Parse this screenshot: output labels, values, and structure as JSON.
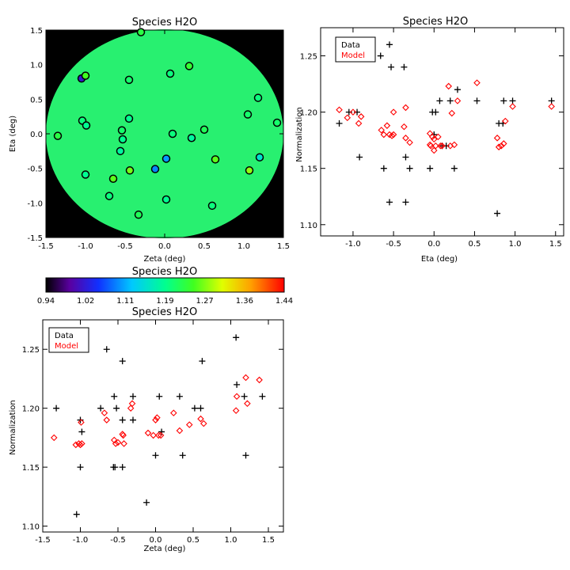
{
  "map_panel": {
    "title": "Species H2O",
    "xlabel": "Zeta (deg)",
    "ylabel": "Eta (deg)",
    "xticks": [
      "-1.5",
      "-1.0",
      "-0.5",
      "0.0",
      "0.5",
      "1.0",
      "1.5"
    ],
    "yticks": [
      "-1.5",
      "-1.0",
      "-0.5",
      "0.0",
      "0.5",
      "1.0",
      "1.5"
    ],
    "field_color": "#28f070",
    "background_color": "#000000"
  },
  "colorbar": {
    "title": "Species H2O",
    "ticks": [
      "0.94",
      "1.02",
      "1.11",
      "1.19",
      "1.27",
      "1.36",
      "1.44"
    ],
    "range": [
      0.94,
      1.44
    ]
  },
  "colors": {
    "data": "#000000",
    "model": "#ff0000"
  },
  "chart_data": [
    {
      "type": "scatter",
      "title": "Species H2O",
      "xlabel": "Zeta (deg)",
      "ylabel": "Eta (deg)",
      "xlim": [
        -1.5,
        1.5
      ],
      "ylim": [
        -1.5,
        1.5
      ],
      "color_range": [
        0.94,
        1.44
      ],
      "field_value": 1.22,
      "points": [
        {
          "x": -0.3,
          "y": 1.47,
          "v": 1.23
        },
        {
          "x": -1.05,
          "y": 0.8,
          "v": 1.02
        },
        {
          "x": -1.0,
          "y": 0.84,
          "v": 1.25
        },
        {
          "x": -0.45,
          "y": 0.78,
          "v": 1.21
        },
        {
          "x": 0.07,
          "y": 0.87,
          "v": 1.2
        },
        {
          "x": 0.31,
          "y": 0.98,
          "v": 1.24
        },
        {
          "x": -1.04,
          "y": 0.19,
          "v": 1.2
        },
        {
          "x": -0.99,
          "y": 0.12,
          "v": 1.19
        },
        {
          "x": -0.45,
          "y": 0.22,
          "v": 1.19
        },
        {
          "x": -0.54,
          "y": 0.05,
          "v": 1.21
        },
        {
          "x": -0.53,
          "y": -0.08,
          "v": 1.19
        },
        {
          "x": -0.56,
          "y": -0.25,
          "v": 1.18
        },
        {
          "x": -1.35,
          "y": -0.03,
          "v": 1.23
        },
        {
          "x": 0.1,
          "y": 0.0,
          "v": 1.2
        },
        {
          "x": 0.34,
          "y": -0.06,
          "v": 1.18
        },
        {
          "x": 0.5,
          "y": 0.06,
          "v": 1.22
        },
        {
          "x": 1.05,
          "y": 0.28,
          "v": 1.21
        },
        {
          "x": 1.18,
          "y": 0.52,
          "v": 1.2
        },
        {
          "x": 1.42,
          "y": 0.16,
          "v": 1.21
        },
        {
          "x": 0.02,
          "y": -0.36,
          "v": 1.1
        },
        {
          "x": -0.12,
          "y": -0.51,
          "v": 1.09
        },
        {
          "x": -0.44,
          "y": -0.53,
          "v": 1.27
        },
        {
          "x": -1.0,
          "y": -0.59,
          "v": 1.19
        },
        {
          "x": -0.65,
          "y": -0.65,
          "v": 1.26
        },
        {
          "x": -0.7,
          "y": -0.9,
          "v": 1.2
        },
        {
          "x": 0.02,
          "y": -0.95,
          "v": 1.19
        },
        {
          "x": 0.6,
          "y": -1.04,
          "v": 1.2
        },
        {
          "x": -0.33,
          "y": -1.17,
          "v": 1.22
        },
        {
          "x": 0.64,
          "y": -0.37,
          "v": 1.26
        },
        {
          "x": 1.07,
          "y": -0.53,
          "v": 1.28
        },
        {
          "x": 1.2,
          "y": -0.34,
          "v": 1.15
        }
      ]
    },
    {
      "type": "scatter",
      "title": "Species H2O",
      "xlabel": "Eta (deg)",
      "ylabel": "Normalization",
      "xlim": [
        -1.4,
        1.6
      ],
      "ylim": [
        1.09,
        1.275
      ],
      "xticks": [
        "-1.0",
        "-0.5",
        "0.0",
        "0.5",
        "1.0",
        "1.5"
      ],
      "yticks": [
        "1.10",
        "1.15",
        "1.20",
        "1.25"
      ],
      "legend": [
        "Data",
        "Model"
      ],
      "legend_position": "top-left",
      "series": [
        {
          "name": "Data",
          "marker": "plus",
          "x": [
            -1.17,
            -1.05,
            -0.95,
            -0.92,
            -0.66,
            -0.62,
            -0.55,
            -0.53,
            -0.55,
            -0.37,
            -0.35,
            -0.35,
            -0.3,
            -0.05,
            -0.02,
            0.0,
            0.02,
            0.07,
            0.1,
            0.15,
            0.2,
            0.25,
            0.29,
            0.53,
            0.78,
            0.8,
            0.85,
            0.86,
            0.97,
            1.45
          ],
          "y": [
            1.19,
            1.2,
            1.2,
            1.16,
            1.25,
            1.15,
            1.26,
            1.24,
            1.12,
            1.24,
            1.16,
            1.12,
            1.15,
            1.15,
            1.2,
            1.18,
            1.2,
            1.21,
            1.17,
            1.17,
            1.21,
            1.15,
            1.22,
            1.21,
            1.11,
            1.19,
            1.19,
            1.21,
            1.21,
            1.21
          ]
        },
        {
          "name": "Model",
          "marker": "diamond",
          "x": [
            -1.17,
            -1.07,
            -1.0,
            -0.93,
            -0.9,
            -0.65,
            -0.62,
            -0.58,
            -0.55,
            -0.52,
            -0.5,
            -0.5,
            -0.37,
            -0.35,
            -0.35,
            -0.3,
            -0.05,
            -0.05,
            -0.04,
            -0.02,
            0.0,
            0.0,
            0.02,
            0.05,
            0.08,
            0.1,
            0.18,
            0.2,
            0.22,
            0.25,
            0.29,
            0.53,
            0.78,
            0.8,
            0.83,
            0.86,
            0.88,
            0.97,
            1.45
          ],
          "y": [
            1.202,
            1.195,
            1.2,
            1.19,
            1.196,
            1.184,
            1.18,
            1.188,
            1.18,
            1.179,
            1.2,
            1.18,
            1.187,
            1.177,
            1.204,
            1.173,
            1.171,
            1.181,
            1.17,
            1.178,
            1.176,
            1.166,
            1.17,
            1.178,
            1.17,
            1.17,
            1.223,
            1.17,
            1.199,
            1.171,
            1.21,
            1.226,
            1.177,
            1.169,
            1.17,
            1.172,
            1.192,
            1.205,
            1.205
          ]
        }
      ]
    },
    {
      "type": "scatter",
      "title": "Species H2O",
      "xlabel": "Zeta (deg)",
      "ylabel": "Normalization",
      "xlim": [
        -1.5,
        1.7
      ],
      "ylim": [
        1.095,
        1.275
      ],
      "xticks": [
        "-1.5",
        "-1.0",
        "-0.5",
        "0.0",
        "0.5",
        "1.0",
        "1.5"
      ],
      "yticks": [
        "1.10",
        "1.15",
        "1.20",
        "1.25"
      ],
      "legend": [
        "Data",
        "Model"
      ],
      "legend_position": "top-left",
      "series": [
        {
          "name": "Data",
          "marker": "plus",
          "x": [
            -1.32,
            -1.05,
            -1.0,
            -1.0,
            -0.98,
            -0.65,
            -0.73,
            -0.55,
            -0.56,
            -0.54,
            -0.52,
            -0.44,
            -0.44,
            -0.44,
            -0.3,
            -0.3,
            -0.12,
            0.0,
            0.05,
            0.08,
            0.32,
            0.36,
            0.52,
            0.6,
            0.62,
            1.07,
            1.08,
            1.18,
            1.2,
            1.42
          ],
          "y": [
            1.2,
            1.11,
            1.19,
            1.15,
            1.18,
            1.25,
            1.2,
            1.21,
            1.15,
            1.15,
            1.2,
            1.24,
            1.19,
            1.15,
            1.21,
            1.19,
            1.12,
            1.16,
            1.21,
            1.18,
            1.21,
            1.16,
            1.2,
            1.2,
            1.24,
            1.26,
            1.22,
            1.21,
            1.16,
            1.21
          ]
        },
        {
          "name": "Model",
          "marker": "diamond",
          "x": [
            -1.35,
            -1.06,
            -1.02,
            -1.0,
            -0.98,
            -0.99,
            -0.68,
            -0.65,
            -0.55,
            -0.53,
            -0.5,
            -0.44,
            -0.43,
            -0.42,
            -0.33,
            -0.31,
            -0.1,
            -0.03,
            0.0,
            0.02,
            0.04,
            0.07,
            0.24,
            0.32,
            0.45,
            0.6,
            0.64,
            1.07,
            1.08,
            1.2,
            1.22,
            1.38
          ],
          "y": [
            1.175,
            1.169,
            1.17,
            1.169,
            1.17,
            1.188,
            1.196,
            1.19,
            1.173,
            1.17,
            1.171,
            1.178,
            1.177,
            1.17,
            1.2,
            1.204,
            1.179,
            1.177,
            1.19,
            1.192,
            1.177,
            1.177,
            1.196,
            1.181,
            1.186,
            1.191,
            1.187,
            1.198,
            1.21,
            1.226,
            1.204,
            1.224
          ]
        }
      ]
    }
  ]
}
